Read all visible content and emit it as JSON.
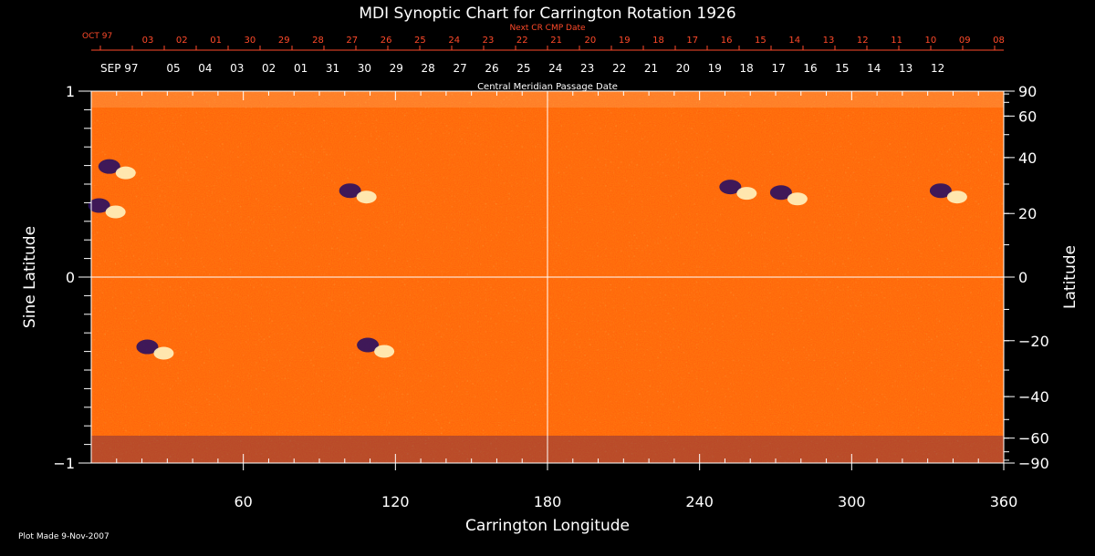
{
  "chart_data": {
    "type": "heatmap",
    "title": "MDI Synoptic Chart for Carrington Rotation 1926",
    "xlabel": "Carrington Longitude",
    "ylabel_left": "Sine Latitude",
    "ylabel_right": "Latitude",
    "xlim": [
      0,
      360
    ],
    "ylim": [
      -1,
      1
    ],
    "x_ticks": [
      60,
      120,
      180,
      240,
      300,
      360
    ],
    "y_ticks_left": [
      {
        "value": 1,
        "label": "1"
      },
      {
        "value": 0,
        "label": "0"
      },
      {
        "value": -1,
        "label": "−1"
      }
    ],
    "y_ticks_right": [
      90,
      60,
      40,
      20,
      0,
      -20,
      -40,
      -60,
      -90
    ],
    "top_axis_title": "Central Meridian Passage Date",
    "top_axis_start_label": "SEP 97",
    "top_axis_dates": [
      "05",
      "04",
      "03",
      "02",
      "01",
      "31",
      "30",
      "29",
      "28",
      "27",
      "26",
      "25",
      "24",
      "23",
      "22",
      "21",
      "20",
      "19",
      "18",
      "17",
      "16",
      "15",
      "14",
      "13",
      "12"
    ],
    "next_axis_title": "Next CR CMP Date",
    "next_axis_start_label": "OCT 97",
    "next_axis_dates": [
      "03",
      "02",
      "01",
      "30",
      "29",
      "28",
      "27",
      "26",
      "25",
      "24",
      "23",
      "22",
      "21",
      "20",
      "19",
      "18",
      "17",
      "16",
      "15",
      "14",
      "13",
      "12",
      "11",
      "10",
      "09",
      "08"
    ],
    "footer": "Plot Made  9-Nov-2007",
    "colors": {
      "background": "#000000",
      "field": "#ff5a10",
      "positive": "#fff4c0",
      "negative": "#2a1060",
      "text": "#ffffff",
      "next_axis": "#ff4a2a"
    },
    "features": [
      {
        "lon": 10,
        "sinlat": 0.58,
        "kind": "bipole"
      },
      {
        "lon": 6,
        "sinlat": 0.37,
        "kind": "bipole"
      },
      {
        "lon": 105,
        "sinlat": 0.45,
        "kind": "bipole"
      },
      {
        "lon": 255,
        "sinlat": 0.47,
        "kind": "bipole"
      },
      {
        "lon": 275,
        "sinlat": 0.44,
        "kind": "bipole"
      },
      {
        "lon": 338,
        "sinlat": 0.45,
        "kind": "bipole"
      },
      {
        "lon": 25,
        "sinlat": -0.39,
        "kind": "bipole"
      },
      {
        "lon": 112,
        "sinlat": -0.38,
        "kind": "bipole"
      }
    ]
  }
}
